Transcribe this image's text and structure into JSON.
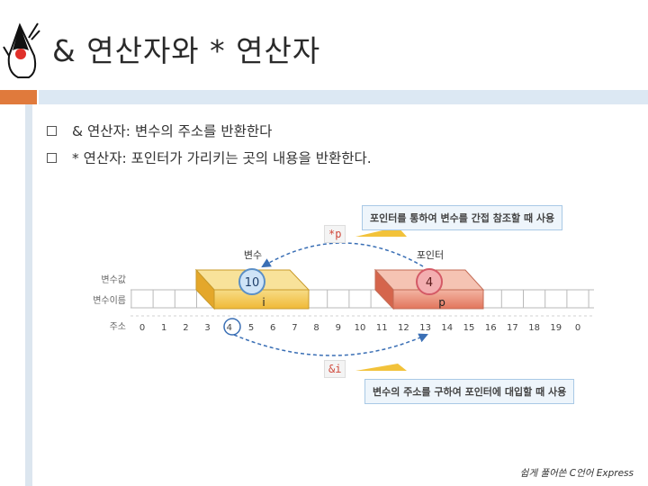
{
  "title": "& 연산자와 * 연산자",
  "bullets": [
    "& 연산자: 변수의 주소를 반환한다",
    "* 연산자: 포인터가 가리키는 곳의 내용을 반환한다."
  ],
  "diagram": {
    "callout_top": "포인터를 통하여 변수를 간접 참조할 때 사용",
    "callout_bottom": "변수의 주소를 구하여 포인터에 대입할 때 사용",
    "deref_tag": "*p",
    "addr_tag": "&i",
    "var_header": "변수",
    "ptr_header": "포인터",
    "row_value_label": "변수값",
    "row_name_label": "변수이름",
    "row_addr_label": "주소",
    "var_value": "10",
    "ptr_value": "4",
    "var_name": "i",
    "ptr_name": "p",
    "addresses": [
      "0",
      "1",
      "2",
      "3",
      "4",
      "5",
      "6",
      "7",
      "8",
      "9",
      "10",
      "11",
      "12",
      "13",
      "14",
      "15",
      "16",
      "17",
      "18",
      "19",
      "0"
    ],
    "colors": {
      "orange_accent": "#e07a3c",
      "var_box": "#f0c24a",
      "ptr_box": "#e9856e",
      "arrow": "#3a6fb5",
      "tag_text": "#d0493c"
    }
  },
  "footer": "쉽게 풀어쓴 C언어 Express"
}
